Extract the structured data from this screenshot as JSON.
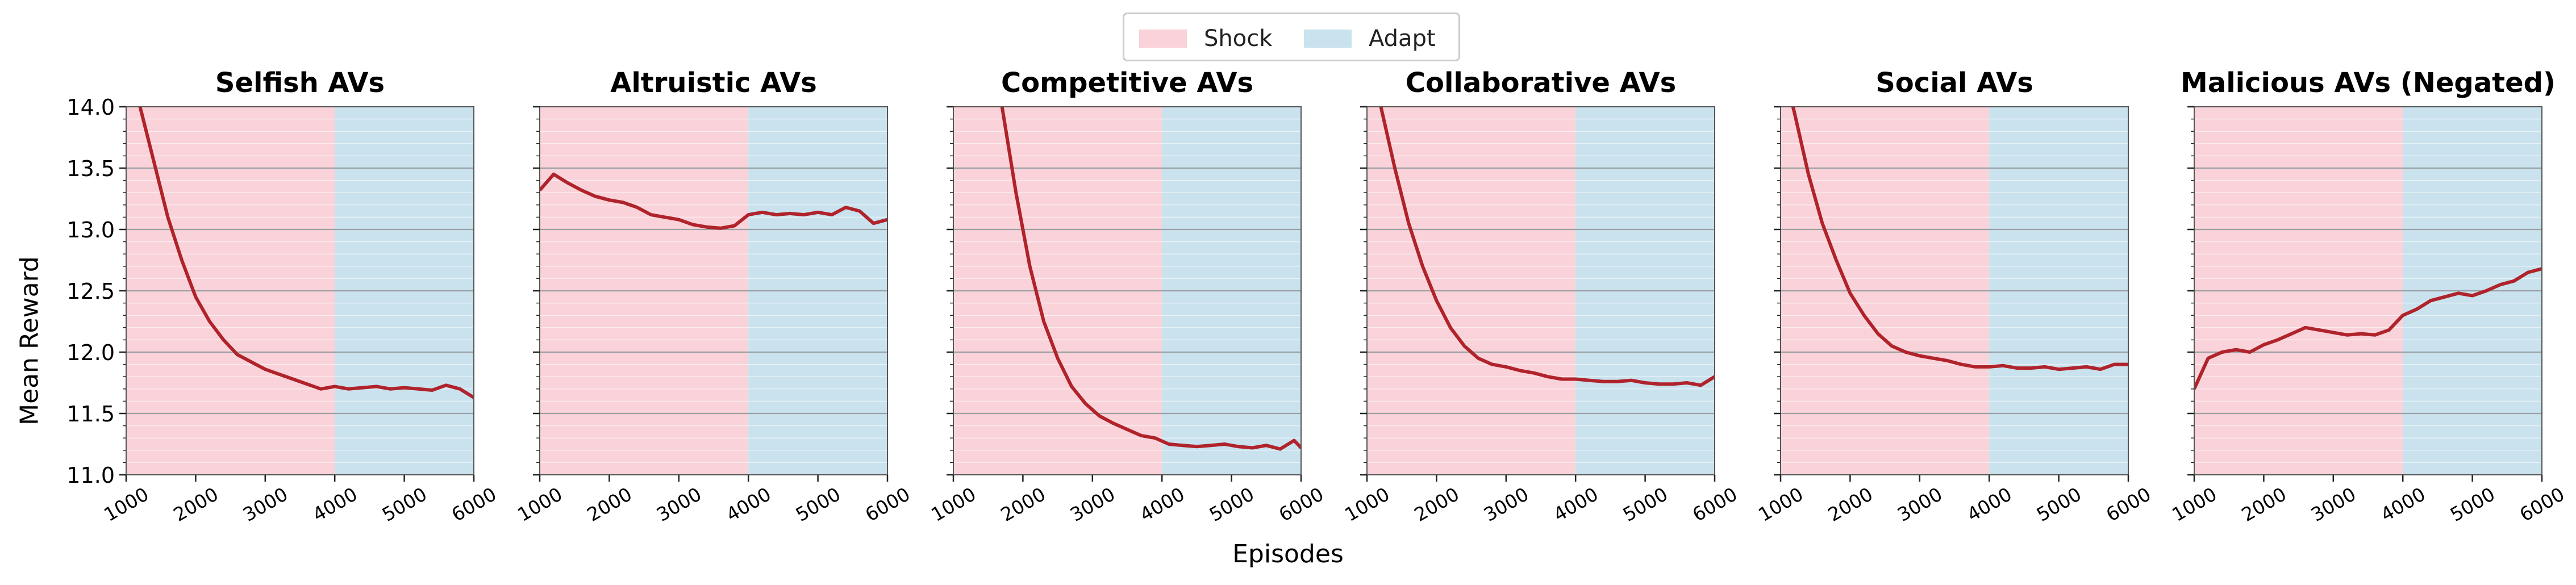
{
  "legend": {
    "items": [
      {
        "label": "Shock",
        "color": "#f9d3d9"
      },
      {
        "label": "Adapt",
        "color": "#c9e2ee"
      }
    ]
  },
  "xlabel": "Episodes",
  "ylabel": "Mean Reward",
  "colors": {
    "line": "#b0232b",
    "grid": "#9aa0a4",
    "shock": "#f9d3d9",
    "adapt": "#c9e2ee"
  },
  "chart_data": [
    {
      "type": "line",
      "title": "Selfish AVs",
      "xlim": [
        1000,
        6000
      ],
      "ylim": [
        11.0,
        14.0
      ],
      "xticks": [
        1000,
        2000,
        3000,
        4000,
        5000,
        6000
      ],
      "yticks": [
        11.0,
        11.5,
        12.0,
        12.5,
        13.0,
        13.5,
        14.0
      ],
      "regions": [
        {
          "label": "Shock",
          "x": [
            1000,
            4000
          ]
        },
        {
          "label": "Adapt",
          "x": [
            4000,
            6000
          ]
        }
      ],
      "series": [
        {
          "x": [
            1000,
            1200,
            1400,
            1600,
            1800,
            2000,
            2200,
            2400,
            2600,
            2800,
            3000,
            3200,
            3400,
            3600,
            3800,
            4000,
            4200,
            4400,
            4600,
            4800,
            5000,
            5200,
            5400,
            5600,
            5800,
            6000
          ],
          "values": [
            14.4,
            14.0,
            13.55,
            13.1,
            12.75,
            12.45,
            12.25,
            12.1,
            11.98,
            11.92,
            11.86,
            11.82,
            11.78,
            11.74,
            11.7,
            11.72,
            11.7,
            11.71,
            11.72,
            11.7,
            11.71,
            11.7,
            11.69,
            11.73,
            11.7,
            11.63
          ]
        }
      ]
    },
    {
      "type": "line",
      "title": "Altruistic AVs",
      "xlim": [
        1000,
        6000
      ],
      "ylim": [
        11.0,
        14.0
      ],
      "xticks": [
        1000,
        2000,
        3000,
        4000,
        5000,
        6000
      ],
      "yticks": [
        11.0,
        11.5,
        12.0,
        12.5,
        13.0,
        13.5,
        14.0
      ],
      "regions": [
        {
          "label": "Shock",
          "x": [
            1000,
            4000
          ]
        },
        {
          "label": "Adapt",
          "x": [
            4000,
            6000
          ]
        }
      ],
      "series": [
        {
          "x": [
            1000,
            1200,
            1400,
            1600,
            1800,
            2000,
            2200,
            2400,
            2600,
            2800,
            3000,
            3200,
            3400,
            3600,
            3800,
            4000,
            4200,
            4400,
            4600,
            4800,
            5000,
            5200,
            5400,
            5600,
            5800,
            6000
          ],
          "values": [
            13.32,
            13.45,
            13.38,
            13.32,
            13.27,
            13.24,
            13.22,
            13.18,
            13.12,
            13.1,
            13.08,
            13.04,
            13.02,
            13.01,
            13.03,
            13.12,
            13.14,
            13.12,
            13.13,
            13.12,
            13.14,
            13.12,
            13.18,
            13.15,
            13.05,
            13.08
          ]
        }
      ]
    },
    {
      "type": "line",
      "title": "Competitive AVs",
      "xlim": [
        1000,
        6000
      ],
      "ylim": [
        11.0,
        14.0
      ],
      "xticks": [
        1000,
        2000,
        3000,
        4000,
        5000,
        6000
      ],
      "yticks": [
        11.0,
        11.5,
        12.0,
        12.5,
        13.0,
        13.5,
        14.0
      ],
      "regions": [
        {
          "label": "Shock",
          "x": [
            1000,
            4000
          ]
        },
        {
          "label": "Adapt",
          "x": [
            4000,
            6000
          ]
        }
      ],
      "series": [
        {
          "x": [
            1500,
            1700,
            1900,
            2100,
            2300,
            2500,
            2700,
            2900,
            3100,
            3300,
            3500,
            3700,
            3900,
            4100,
            4300,
            4500,
            4700,
            4900,
            5100,
            5300,
            5500,
            5700,
            5900,
            6000
          ],
          "values": [
            14.5,
            14.0,
            13.3,
            12.7,
            12.25,
            11.95,
            11.72,
            11.58,
            11.48,
            11.42,
            11.37,
            11.32,
            11.3,
            11.25,
            11.24,
            11.23,
            11.24,
            11.25,
            11.23,
            11.22,
            11.24,
            11.21,
            11.28,
            11.22
          ]
        }
      ]
    },
    {
      "type": "line",
      "title": "Collaborative AVs",
      "xlim": [
        1000,
        6000
      ],
      "ylim": [
        11.0,
        14.0
      ],
      "xticks": [
        1000,
        2000,
        3000,
        4000,
        5000,
        6000
      ],
      "yticks": [
        11.0,
        11.5,
        12.0,
        12.5,
        13.0,
        13.5,
        14.0
      ],
      "regions": [
        {
          "label": "Shock",
          "x": [
            1000,
            4000
          ]
        },
        {
          "label": "Adapt",
          "x": [
            4000,
            6000
          ]
        }
      ],
      "series": [
        {
          "x": [
            1000,
            1200,
            1400,
            1600,
            1800,
            2000,
            2200,
            2400,
            2600,
            2800,
            3000,
            3200,
            3400,
            3600,
            3800,
            4000,
            4200,
            4400,
            4600,
            4800,
            5000,
            5200,
            5400,
            5600,
            5800,
            6000
          ],
          "values": [
            14.5,
            14.0,
            13.5,
            13.05,
            12.7,
            12.42,
            12.2,
            12.05,
            11.95,
            11.9,
            11.88,
            11.85,
            11.83,
            11.8,
            11.78,
            11.78,
            11.77,
            11.76,
            11.76,
            11.77,
            11.75,
            11.74,
            11.74,
            11.75,
            11.73,
            11.8
          ]
        }
      ]
    },
    {
      "type": "line",
      "title": "Social AVs",
      "xlim": [
        1000,
        6000
      ],
      "ylim": [
        11.0,
        14.0
      ],
      "xticks": [
        1000,
        2000,
        3000,
        4000,
        5000,
        6000
      ],
      "yticks": [
        11.0,
        11.5,
        12.0,
        12.5,
        13.0,
        13.5,
        14.0
      ],
      "regions": [
        {
          "label": "Shock",
          "x": [
            1000,
            4000
          ]
        },
        {
          "label": "Adapt",
          "x": [
            4000,
            6000
          ]
        }
      ],
      "series": [
        {
          "x": [
            1000,
            1200,
            1400,
            1600,
            1800,
            2000,
            2200,
            2400,
            2600,
            2800,
            3000,
            3200,
            3400,
            3600,
            3800,
            4000,
            4200,
            4400,
            4600,
            4800,
            5000,
            5200,
            5400,
            5600,
            5800,
            6000
          ],
          "values": [
            14.4,
            13.95,
            13.45,
            13.05,
            12.75,
            12.48,
            12.3,
            12.15,
            12.05,
            12.0,
            11.97,
            11.95,
            11.93,
            11.9,
            11.88,
            11.88,
            11.89,
            11.87,
            11.87,
            11.88,
            11.86,
            11.87,
            11.88,
            11.86,
            11.9,
            11.9
          ]
        }
      ]
    },
    {
      "type": "line",
      "title": "Malicious AVs (Negated)",
      "xlim": [
        1000,
        6000
      ],
      "ylim": [
        11.0,
        14.0
      ],
      "xticks": [
        1000,
        2000,
        3000,
        4000,
        5000,
        6000
      ],
      "yticks": [
        11.0,
        11.5,
        12.0,
        12.5,
        13.0,
        13.5,
        14.0
      ],
      "regions": [
        {
          "label": "Shock",
          "x": [
            1000,
            4000
          ]
        },
        {
          "label": "Adapt",
          "x": [
            4000,
            6000
          ]
        }
      ],
      "series": [
        {
          "x": [
            1000,
            1200,
            1400,
            1600,
            1800,
            2000,
            2200,
            2400,
            2600,
            2800,
            3000,
            3200,
            3400,
            3600,
            3800,
            4000,
            4200,
            4400,
            4600,
            4800,
            5000,
            5200,
            5400,
            5600,
            5800,
            6000
          ],
          "values": [
            11.7,
            11.95,
            12.0,
            12.02,
            12.0,
            12.06,
            12.1,
            12.15,
            12.2,
            12.18,
            12.16,
            12.14,
            12.15,
            12.14,
            12.18,
            12.3,
            12.35,
            12.42,
            12.45,
            12.48,
            12.46,
            12.5,
            12.55,
            12.58,
            12.65,
            12.68
          ]
        }
      ]
    }
  ]
}
